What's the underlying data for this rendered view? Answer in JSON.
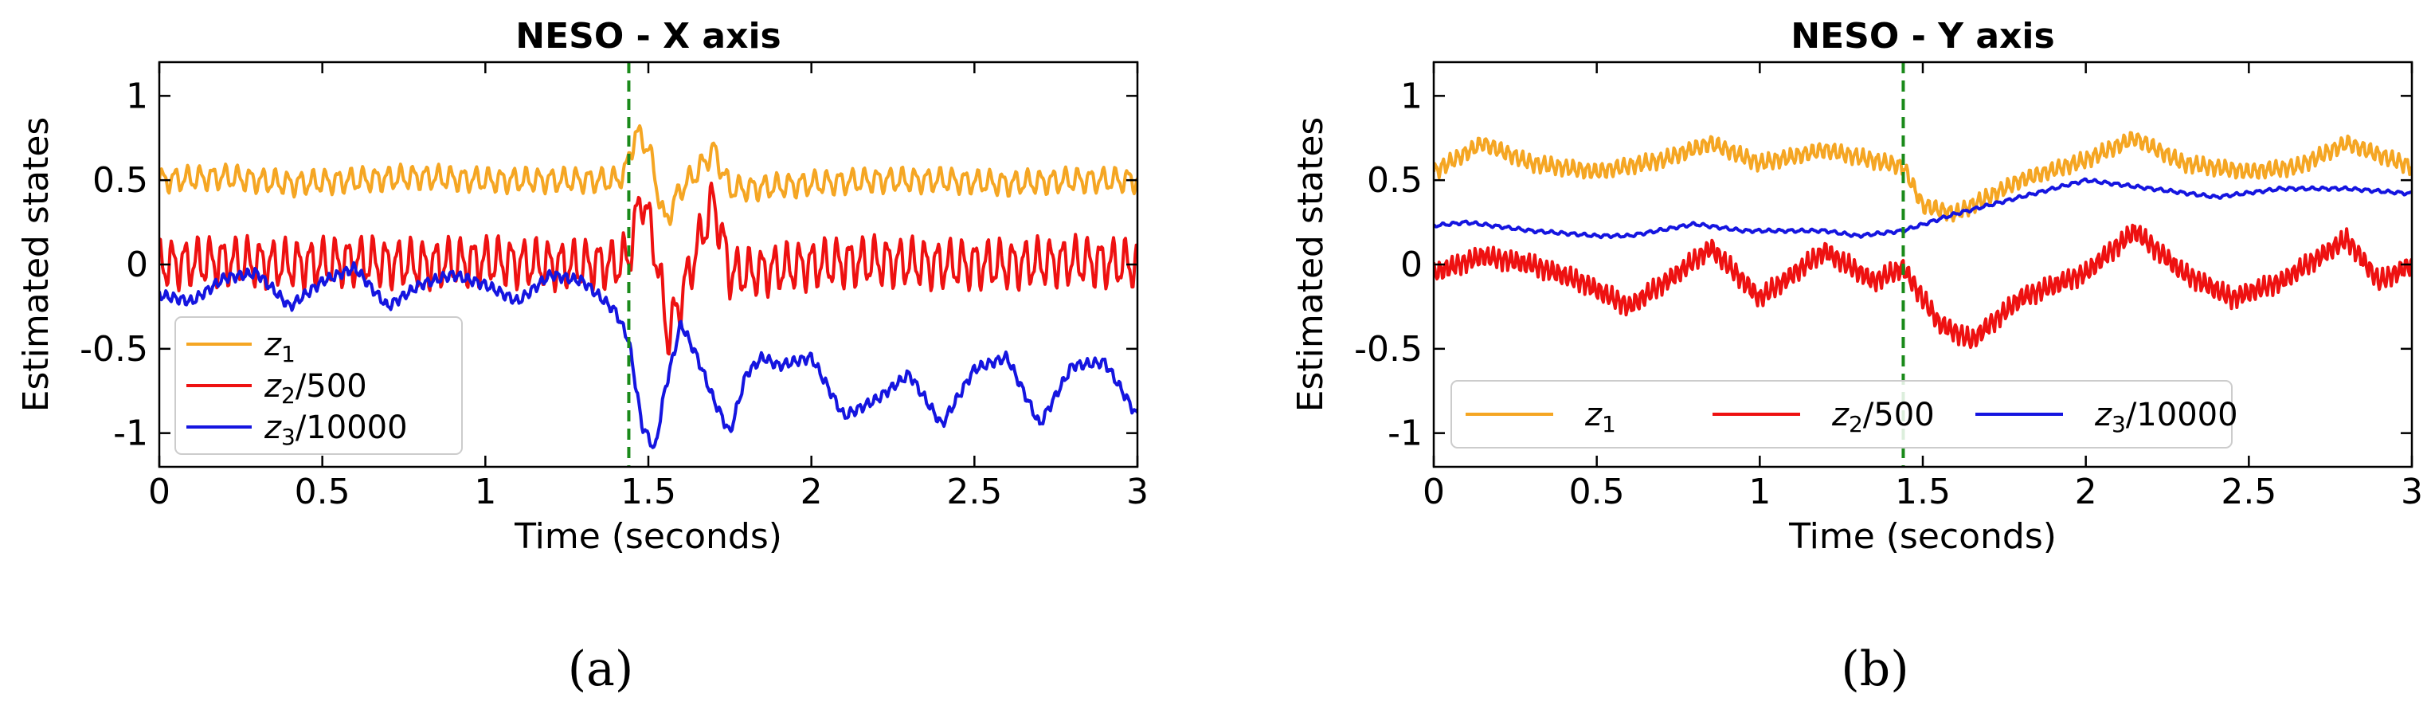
{
  "chart_data": [
    {
      "type": "line",
      "title": "NESO - X axis",
      "xlabel": "Time (seconds)",
      "ylabel": "Estimated states",
      "xlim": [
        0,
        3
      ],
      "ylim": [
        -1.2,
        1.2
      ],
      "x_ticks": [
        "0",
        "0.5",
        "1",
        "1.5",
        "2",
        "2.5",
        "3"
      ],
      "y_ticks": [
        "1",
        "0.5",
        "0",
        "-0.5",
        "-1"
      ],
      "event_line_x": 1.44,
      "legend_position": "lower-left",
      "subfigure_label": "(a)",
      "series": [
        {
          "name": "z1",
          "label_base": "z",
          "label_sub": "1",
          "label_suffix": "",
          "color": "#f5a623",
          "x": [
            0,
            0.2,
            0.4,
            0.6,
            0.8,
            1.0,
            1.2,
            1.4,
            1.43,
            1.46,
            1.5,
            1.55,
            1.6,
            1.65,
            1.7,
            1.75,
            1.8,
            2.0,
            2.2,
            2.4,
            2.6,
            2.8,
            3.0
          ],
          "values": [
            0.5,
            0.52,
            0.48,
            0.5,
            0.52,
            0.5,
            0.5,
            0.5,
            0.55,
            0.78,
            0.7,
            0.25,
            0.45,
            0.55,
            0.68,
            0.45,
            0.45,
            0.48,
            0.5,
            0.5,
            0.48,
            0.5,
            0.5
          ],
          "osc_amp": 0.06,
          "osc_freq": 26
        },
        {
          "name": "z2/500",
          "label_base": "z",
          "label_sub": "2",
          "label_suffix": "/500",
          "color": "#ee1111",
          "x": [
            0,
            0.2,
            0.4,
            0.6,
            0.8,
            1.0,
            1.2,
            1.4,
            1.44,
            1.48,
            1.52,
            1.56,
            1.6,
            1.65,
            1.7,
            1.75,
            1.8,
            2.0,
            2.2,
            2.4,
            2.6,
            2.8,
            3.0
          ],
          "values": [
            0,
            0.02,
            0.0,
            0.02,
            0.0,
            0.02,
            0.0,
            0.0,
            0.05,
            0.42,
            0.1,
            -0.42,
            -0.2,
            0.1,
            0.38,
            -0.05,
            -0.05,
            0.0,
            0.02,
            0.0,
            0.0,
            0.02,
            0.0
          ],
          "osc_amp": 0.12,
          "osc_freq": 26
        },
        {
          "name": "z3/10000",
          "label_base": "z",
          "label_sub": "3",
          "label_suffix": "/10000",
          "color": "#1515e0",
          "x": [
            0,
            0.1,
            0.2,
            0.3,
            0.4,
            0.5,
            0.6,
            0.7,
            0.8,
            0.9,
            1.0,
            1.1,
            1.2,
            1.3,
            1.4,
            1.44,
            1.48,
            1.52,
            1.55,
            1.6,
            1.65,
            1.7,
            1.75,
            1.8,
            1.85,
            1.9,
            2.0,
            2.1,
            2.2,
            2.3,
            2.4,
            2.5,
            2.6,
            2.7,
            2.8,
            2.9,
            3.0
          ],
          "values": [
            -0.18,
            -0.22,
            -0.08,
            -0.05,
            -0.25,
            -0.1,
            -0.02,
            -0.25,
            -0.12,
            -0.06,
            -0.12,
            -0.22,
            -0.06,
            -0.1,
            -0.28,
            -0.45,
            -0.95,
            -1.1,
            -0.75,
            -0.35,
            -0.55,
            -0.8,
            -1.0,
            -0.65,
            -0.55,
            -0.6,
            -0.55,
            -0.9,
            -0.8,
            -0.65,
            -0.95,
            -0.62,
            -0.55,
            -0.95,
            -0.6,
            -0.58,
            -0.9
          ],
          "osc_amp": 0.025,
          "osc_freq": 40
        }
      ]
    },
    {
      "type": "line",
      "title": "NESO - Y axis",
      "xlabel": "Time (seconds)",
      "ylabel": "Estimated states",
      "xlim": [
        0,
        3
      ],
      "ylim": [
        -1.2,
        1.2
      ],
      "x_ticks": [
        "0",
        "0.5",
        "1",
        "1.5",
        "2",
        "2.5",
        "3"
      ],
      "y_ticks": [
        "1",
        "0.5",
        "0",
        "-0.5",
        "-1"
      ],
      "event_line_x": 1.44,
      "legend_position": "bottom",
      "subfigure_label": "(b)",
      "series": [
        {
          "name": "z1",
          "label_base": "z",
          "label_sub": "1",
          "label_suffix": "",
          "color": "#f5a623",
          "x": [
            0,
            0.15,
            0.3,
            0.5,
            0.7,
            0.85,
            1.0,
            1.2,
            1.44,
            1.5,
            1.6,
            1.7,
            1.8,
            2.0,
            2.15,
            2.3,
            2.5,
            2.65,
            2.8,
            3.0
          ],
          "values": [
            0.55,
            0.72,
            0.6,
            0.55,
            0.62,
            0.72,
            0.6,
            0.68,
            0.58,
            0.35,
            0.3,
            0.4,
            0.5,
            0.62,
            0.75,
            0.6,
            0.55,
            0.58,
            0.72,
            0.58
          ],
          "osc_amp": 0.04,
          "osc_freq": 45
        },
        {
          "name": "z2/500",
          "label_base": "z",
          "label_sub": "2",
          "label_suffix": "/500",
          "color": "#ee1111",
          "x": [
            0,
            0.15,
            0.3,
            0.45,
            0.6,
            0.75,
            0.85,
            1.0,
            1.2,
            1.35,
            1.44,
            1.55,
            1.65,
            1.8,
            2.0,
            2.15,
            2.3,
            2.45,
            2.6,
            2.8,
            2.9,
            3.0
          ],
          "values": [
            -0.05,
            0.05,
            0.0,
            -0.1,
            -0.25,
            -0.05,
            0.1,
            -0.2,
            0.08,
            -0.1,
            -0.02,
            -0.35,
            -0.45,
            -0.2,
            -0.05,
            0.2,
            -0.05,
            -0.2,
            -0.1,
            0.15,
            -0.1,
            0.0
          ],
          "osc_amp": 0.05,
          "osc_freq": 55
        },
        {
          "name": "z3/10000",
          "label_base": "z",
          "label_sub": "3",
          "label_suffix": "/10000",
          "color": "#1515e0",
          "x": [
            0,
            0.1,
            0.3,
            0.5,
            0.6,
            0.8,
            0.95,
            1.0,
            1.2,
            1.3,
            1.44,
            1.6,
            1.8,
            2.0,
            2.2,
            2.4,
            2.6,
            2.8,
            3.0
          ],
          "values": [
            0.23,
            0.25,
            0.2,
            0.17,
            0.17,
            0.24,
            0.2,
            0.2,
            0.2,
            0.17,
            0.2,
            0.3,
            0.4,
            0.5,
            0.45,
            0.4,
            0.45,
            0.45,
            0.42
          ],
          "osc_amp": 0.008,
          "osc_freq": 30
        }
      ]
    }
  ]
}
